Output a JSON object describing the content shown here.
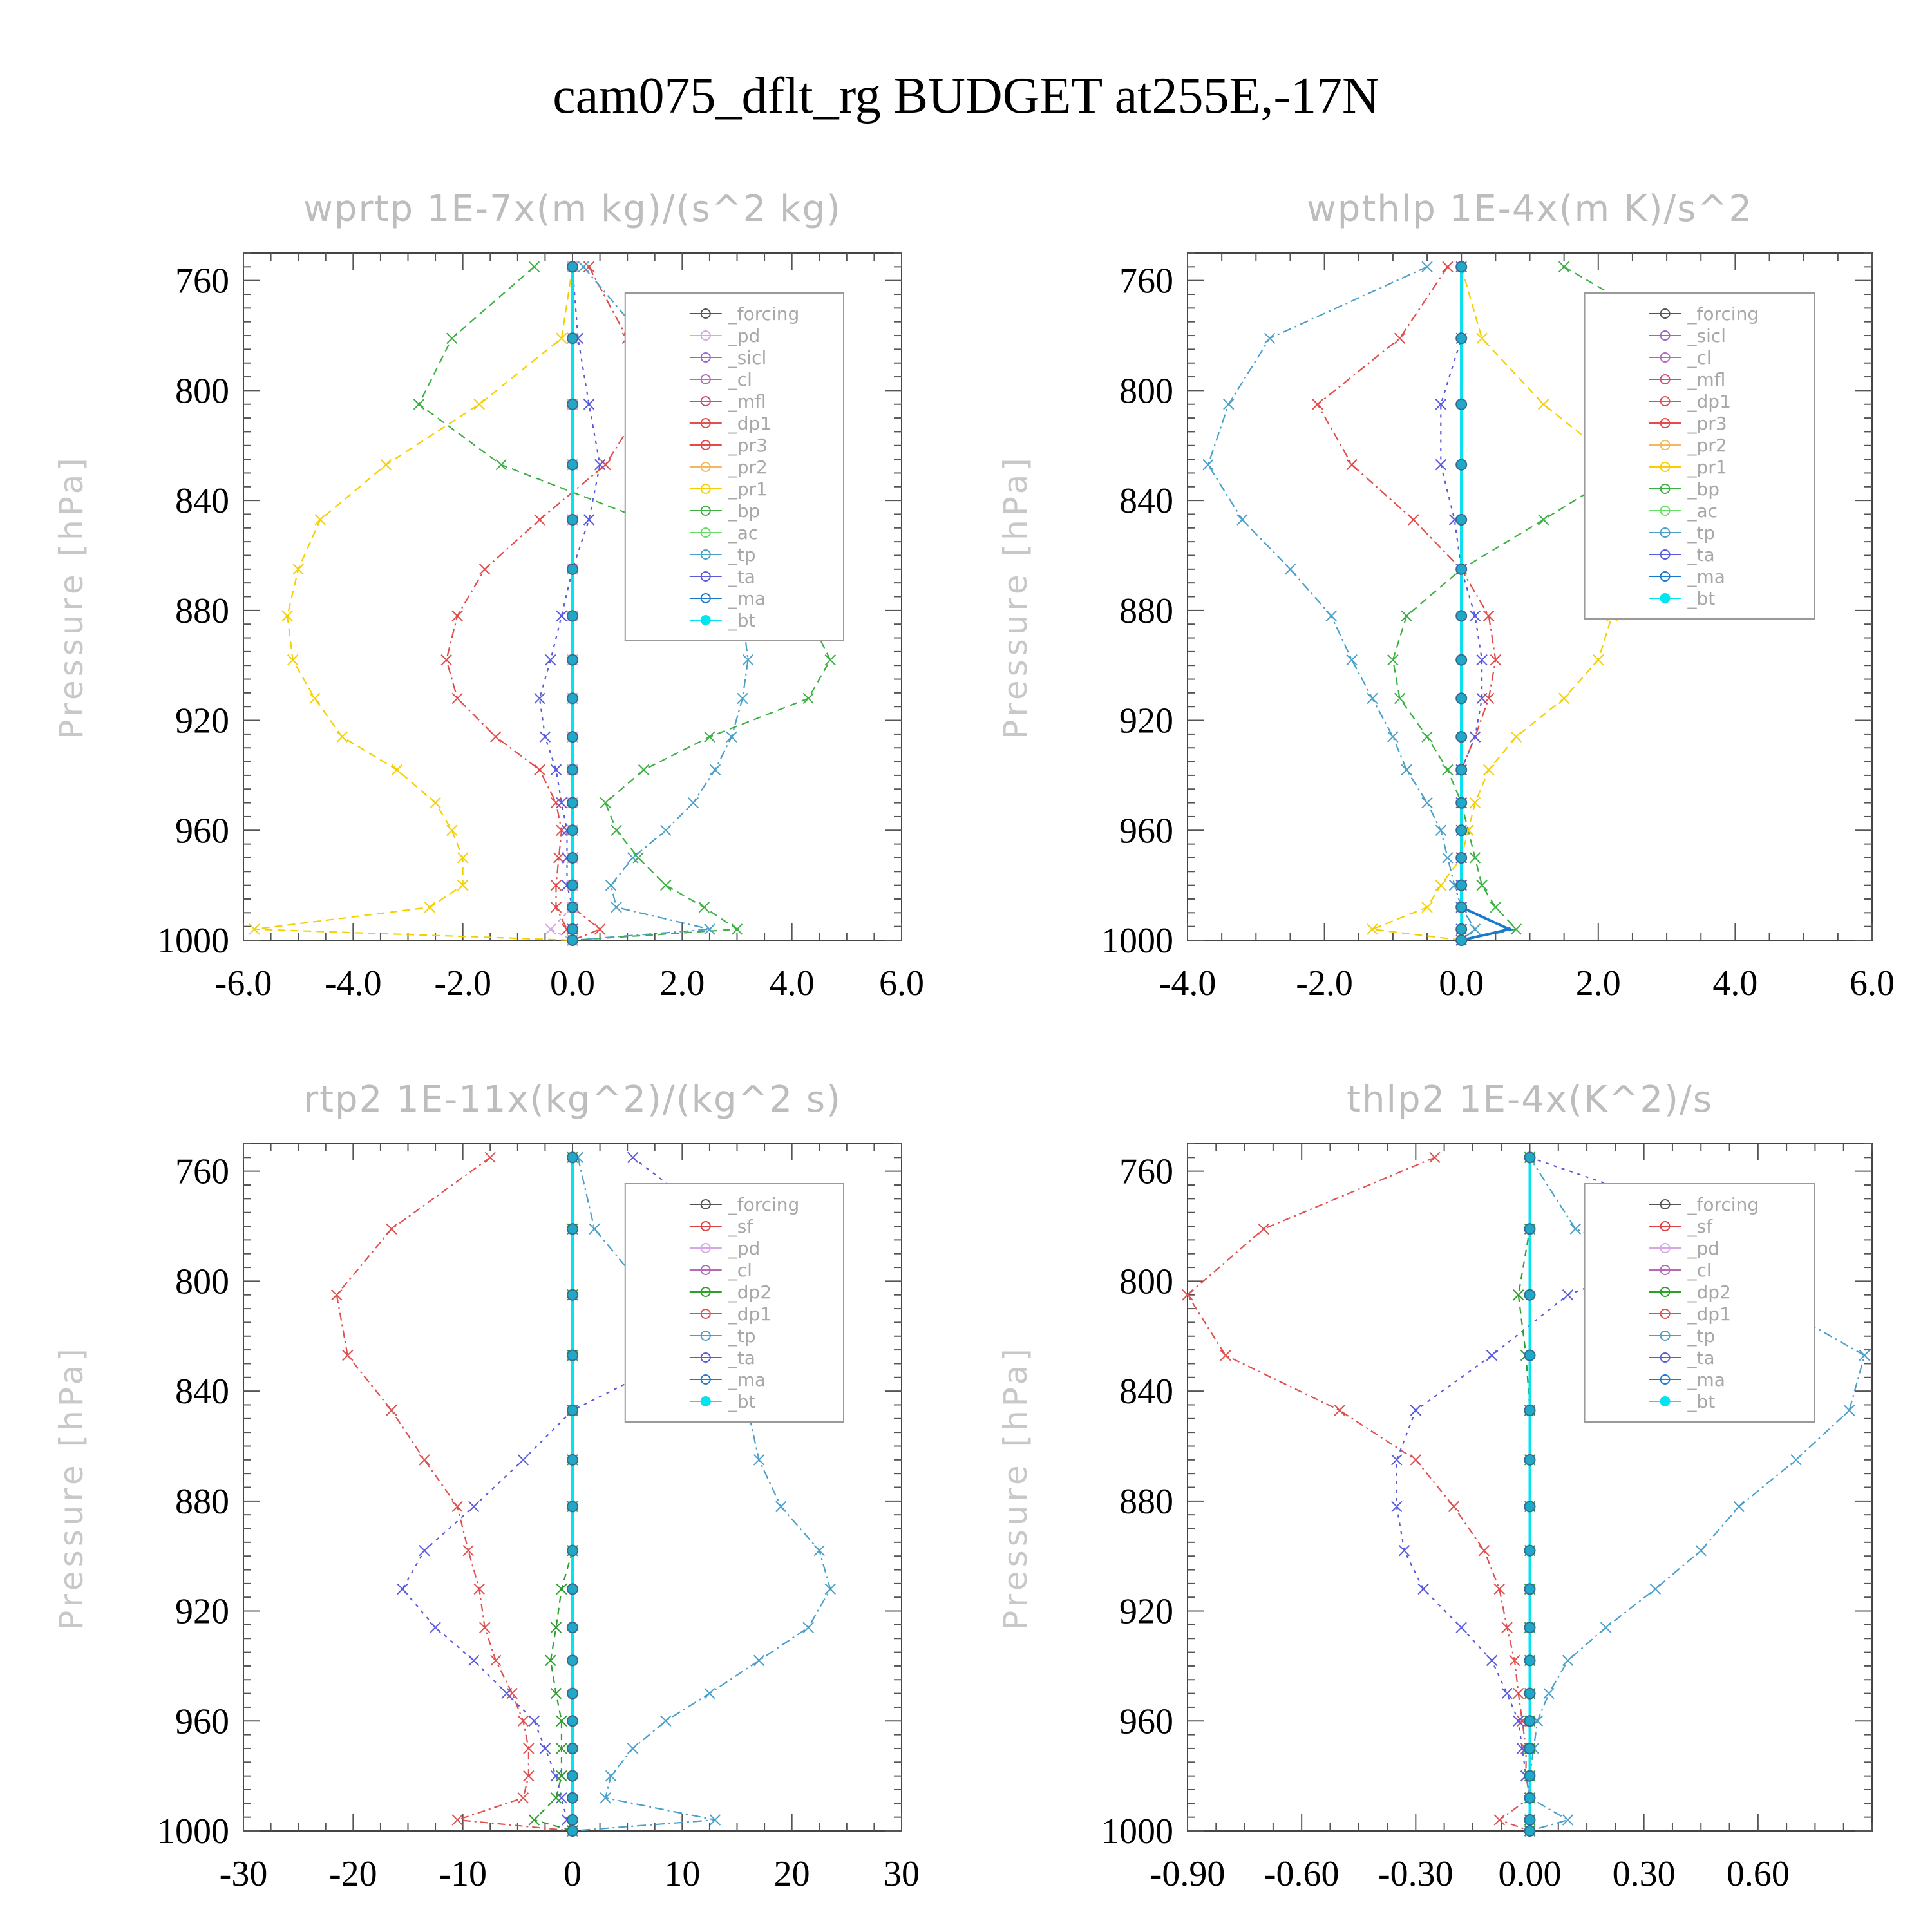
{
  "figure": {
    "title": "cam075_dflt_rg  BUDGET at255E,-17N"
  },
  "colors": {
    "_forcing": "#555555",
    "_pd": "#d8a6e6",
    "_sicl": "#9966cc",
    "_cl": "#b56ab8",
    "_mfl": "#d04a80",
    "_dp1": "#e05050",
    "_pr3": "#e34a4a",
    "_pr2": "#f0b860",
    "_pr1": "#f5d000",
    "_bp": "#3cb043",
    "_ac": "#66dd66",
    "_tp": "#4aa0c8",
    "_ta": "#5a5ae0",
    "_ma": "#1a7ad0",
    "_bt": "#00e5ee",
    "_sf": "#e04040",
    "_dp2": "#2e9e2e"
  },
  "chart_data": [
    {
      "type": "line",
      "title": "wprtp   1E-7x(m kg)/(s^2 kg)",
      "ylabel": "Pressure [hPa]",
      "xlim": [
        -6.0,
        6.0
      ],
      "ylim": [
        1000,
        750
      ],
      "xticks": [
        "-6.0",
        "-4.0",
        "-2.0",
        "0.0",
        "2.0",
        "4.0",
        "6.0"
      ],
      "xtick_values": [
        -6,
        -4,
        -2,
        0,
        2,
        4,
        6
      ],
      "yticks": [
        760,
        800,
        840,
        880,
        920,
        960,
        1000
      ],
      "legend": [
        "_forcing",
        "_pd",
        "_sicl",
        "_cl",
        "_mfl",
        "_dp1",
        "_pr3",
        "_pr2",
        "_pr1",
        "_bp",
        "_ac",
        "_tp",
        "_ta",
        "_ma",
        "_bt"
      ],
      "legend_placement": "upper-right",
      "pressure": [
        755,
        781,
        805,
        827,
        847,
        865,
        882,
        898,
        912,
        926,
        938,
        950,
        960,
        970,
        980,
        988,
        996,
        1000
      ],
      "series": [
        {
          "name": "_pr1",
          "values": [
            0,
            -0.2,
            -1.7,
            -3.4,
            -4.6,
            -5.0,
            -5.2,
            -5.1,
            -4.7,
            -4.2,
            -3.2,
            -2.5,
            -2.2,
            -2.0,
            -2.0,
            -2.6,
            -5.8,
            0
          ]
        },
        {
          "name": "_bp",
          "values": [
            -0.7,
            -2.2,
            -2.8,
            -1.3,
            1.3,
            3.0,
            4.3,
            4.7,
            4.3,
            2.5,
            1.3,
            0.6,
            0.8,
            1.2,
            1.7,
            2.4,
            3.0,
            0
          ]
        },
        {
          "name": "_pr3",
          "values": [
            0.3,
            1.0,
            1.3,
            0.6,
            -0.6,
            -1.6,
            -2.1,
            -2.3,
            -2.1,
            -1.4,
            -0.6,
            -0.3,
            -0.2,
            -0.25,
            -0.3,
            -0.3,
            -0.1,
            0
          ]
        },
        {
          "name": "_tp",
          "values": [
            0.2,
            1.3,
            2.6,
            3.5,
            3.4,
            3.2,
            3.1,
            3.2,
            3.1,
            2.9,
            2.6,
            2.2,
            1.7,
            1.1,
            0.7,
            0.8,
            2.5,
            0
          ]
        },
        {
          "name": "_ta",
          "values": [
            0,
            0.1,
            0.3,
            0.5,
            0.3,
            0,
            -0.2,
            -0.4,
            -0.6,
            -0.5,
            -0.3,
            -0.2,
            -0.1,
            -0.1,
            -0.1,
            0,
            0,
            0
          ]
        },
        {
          "name": "_dp1",
          "values": [
            0,
            0,
            0,
            0,
            0,
            0,
            0,
            0,
            0,
            0,
            0,
            0,
            0,
            0,
            0,
            0,
            0.5,
            0
          ]
        },
        {
          "name": "_pd",
          "values": [
            0,
            0,
            0,
            0,
            0,
            0,
            0,
            0,
            0,
            0,
            0,
            0,
            0,
            0,
            0,
            0,
            -0.4,
            0
          ]
        },
        {
          "name": "_ma",
          "values": [
            0,
            0,
            0,
            0,
            0,
            0,
            0,
            0,
            0,
            0,
            0,
            0,
            0,
            0,
            0,
            0,
            0,
            0
          ]
        },
        {
          "name": "_bt",
          "values": [
            0,
            0,
            0,
            0,
            0,
            0,
            0,
            0,
            0,
            0,
            0,
            0,
            0,
            0,
            0,
            0,
            0,
            0
          ]
        }
      ]
    },
    {
      "type": "line",
      "title": "wpthlp   1E-4x(m K)/s^2",
      "ylabel": "Pressure [hPa]",
      "xlim": [
        -4.0,
        6.0
      ],
      "ylim": [
        1000,
        750
      ],
      "xticks": [
        "-4.0",
        "-2.0",
        "0.0",
        "2.0",
        "4.0",
        "6.0"
      ],
      "xtick_values": [
        -4,
        -2,
        0,
        2,
        4,
        6
      ],
      "yticks": [
        760,
        800,
        840,
        880,
        920,
        960,
        1000
      ],
      "legend": [
        "_forcing",
        "_sicl",
        "_cl",
        "_mfl",
        "_dp1",
        "_pr3",
        "_pr2",
        "_pr1",
        "_bp",
        "_ac",
        "_tp",
        "_ta",
        "_ma",
        "_bt"
      ],
      "legend_placement": "upper-right",
      "pressure": [
        755,
        781,
        805,
        827,
        847,
        865,
        882,
        898,
        912,
        926,
        938,
        950,
        960,
        970,
        980,
        988,
        996,
        1000
      ],
      "series": [
        {
          "name": "_tp",
          "values": [
            -0.5,
            -2.8,
            -3.4,
            -3.7,
            -3.2,
            -2.5,
            -1.9,
            -1.6,
            -1.3,
            -1.0,
            -0.8,
            -0.5,
            -0.3,
            -0.2,
            -0.1,
            0,
            0.2,
            0
          ]
        },
        {
          "name": "_bp",
          "values": [
            1.5,
            3.3,
            4.5,
            2.5,
            1.2,
            0,
            -0.8,
            -1.0,
            -0.9,
            -0.5,
            -0.2,
            0,
            0.1,
            0.2,
            0.3,
            0.5,
            0.8,
            0
          ]
        },
        {
          "name": "_pr1",
          "values": [
            0,
            0.3,
            1.2,
            2.3,
            2.6,
            2.4,
            2.2,
            2.0,
            1.5,
            0.8,
            0.4,
            0.2,
            0.1,
            0,
            -0.3,
            -0.5,
            -1.3,
            0
          ]
        },
        {
          "name": "_pr3",
          "values": [
            -0.2,
            -0.9,
            -2.1,
            -1.6,
            -0.7,
            0,
            0.4,
            0.5,
            0.4,
            0.2,
            0,
            0,
            0,
            0,
            0,
            0,
            0,
            0
          ]
        },
        {
          "name": "_ta",
          "values": [
            0,
            0,
            -0.3,
            -0.3,
            -0.1,
            0,
            0.2,
            0.3,
            0.3,
            0.2,
            0,
            0,
            0,
            0,
            0,
            0,
            0,
            0
          ]
        },
        {
          "name": "_ma",
          "values": [
            0,
            0,
            0,
            0,
            0,
            0,
            0,
            0,
            0,
            0,
            0,
            0,
            0,
            0,
            0,
            0,
            0.7,
            0
          ]
        },
        {
          "name": "_bt",
          "values": [
            0,
            0,
            0,
            0,
            0,
            0,
            0,
            0,
            0,
            0,
            0,
            0,
            0,
            0,
            0,
            0,
            0,
            0
          ]
        }
      ]
    },
    {
      "type": "line",
      "title": "rtp2   1E-11x(kg^2)/(kg^2 s)",
      "ylabel": "Pressure [hPa]",
      "xlim": [
        -30,
        30
      ],
      "ylim": [
        1000,
        750
      ],
      "xticks": [
        "-30",
        "-20",
        "-10",
        "0",
        "10",
        "20",
        "30"
      ],
      "xtick_values": [
        -30,
        -20,
        -10,
        0,
        10,
        20,
        30
      ],
      "yticks": [
        760,
        800,
        840,
        880,
        920,
        960,
        1000
      ],
      "legend": [
        "_forcing",
        "_sf",
        "_pd",
        "_cl",
        "_dp2",
        "_dp1",
        "_tp",
        "_ta",
        "_ma",
        "_bt"
      ],
      "legend_placement": "upper-right",
      "pressure": [
        755,
        781,
        805,
        827,
        847,
        865,
        882,
        898,
        912,
        926,
        938,
        950,
        960,
        970,
        980,
        988,
        996,
        1000
      ],
      "series": [
        {
          "name": "_dp1",
          "values": [
            -7.5,
            -16.5,
            -21.5,
            -20.5,
            -16.5,
            -13.5,
            -10.5,
            -9.5,
            -8.5,
            -8.0,
            -7.0,
            -5.5,
            -4.5,
            -4.0,
            -4.0,
            -4.5,
            -10.5,
            0
          ]
        },
        {
          "name": "_ta",
          "values": [
            5.5,
            14.0,
            14.5,
            10.0,
            0,
            -4.5,
            -9.0,
            -13.5,
            -15.5,
            -12.5,
            -9.0,
            -6.0,
            -3.5,
            -2.5,
            -1.5,
            -1.0,
            -0.5,
            0
          ]
        },
        {
          "name": "_tp",
          "values": [
            0.5,
            2.0,
            7.0,
            12.0,
            16.0,
            17.0,
            19.0,
            22.5,
            23.5,
            21.5,
            17.0,
            12.5,
            8.5,
            5.5,
            3.5,
            3.0,
            13.0,
            0
          ]
        },
        {
          "name": "_dp2",
          "values": [
            0,
            0,
            0,
            0,
            0,
            0,
            0,
            0,
            -1.0,
            -1.5,
            -2.0,
            -1.5,
            -1.0,
            -1.0,
            -1.0,
            -1.5,
            -3.5,
            0
          ]
        },
        {
          "name": "_ma",
          "values": [
            0,
            0,
            0,
            0,
            0,
            0,
            0,
            0,
            0,
            0,
            0,
            0,
            0,
            0,
            0,
            0,
            0,
            0
          ]
        },
        {
          "name": "_bt",
          "values": [
            0,
            0,
            0,
            0,
            0,
            0,
            0,
            0,
            0,
            0,
            0,
            0,
            0,
            0,
            0,
            0,
            0,
            0
          ]
        }
      ]
    },
    {
      "type": "line",
      "title": "thlp2   1E-4x(K^2)/s",
      "ylabel": "Pressure [hPa]",
      "xlim": [
        -0.9,
        0.9
      ],
      "ylim": [
        1000,
        750
      ],
      "xticks": [
        "-0.90",
        "-0.60",
        "-0.30",
        "0.00",
        "0.30",
        "0.60"
      ],
      "xtick_values": [
        -0.9,
        -0.6,
        -0.3,
        0,
        0.3,
        0.6
      ],
      "yticks": [
        760,
        800,
        840,
        880,
        920,
        960,
        1000
      ],
      "legend": [
        "_forcing",
        "_sf",
        "_pd",
        "_cl",
        "_dp2",
        "_dp1",
        "_tp",
        "_ta",
        "_ma",
        "_bt"
      ],
      "legend_placement": "upper-right",
      "pressure": [
        755,
        781,
        805,
        827,
        847,
        865,
        882,
        898,
        912,
        926,
        938,
        950,
        960,
        970,
        980,
        988,
        996,
        1000
      ],
      "series": [
        {
          "name": "_dp1",
          "values": [
            -0.25,
            -0.7,
            -0.9,
            -0.8,
            -0.5,
            -0.3,
            -0.2,
            -0.12,
            -0.08,
            -0.06,
            -0.04,
            -0.03,
            -0.02,
            -0.01,
            -0.01,
            0,
            -0.08,
            0
          ]
        },
        {
          "name": "_ta",
          "values": [
            0,
            0.55,
            0.1,
            -0.1,
            -0.3,
            -0.35,
            -0.35,
            -0.33,
            -0.28,
            -0.18,
            -0.1,
            -0.06,
            -0.03,
            -0.02,
            -0.01,
            0,
            0,
            0
          ]
        },
        {
          "name": "_tp",
          "values": [
            0,
            0.12,
            0.6,
            0.88,
            0.84,
            0.7,
            0.55,
            0.45,
            0.33,
            0.2,
            0.1,
            0.05,
            0.02,
            0.01,
            0,
            0,
            0.1,
            0
          ]
        },
        {
          "name": "_dp2",
          "values": [
            0,
            0,
            -0.03,
            -0.01,
            0,
            0,
            0,
            0,
            0,
            0,
            0,
            0,
            0,
            0,
            0,
            0,
            0,
            0
          ]
        },
        {
          "name": "_ma",
          "values": [
            0,
            0,
            0,
            0,
            0,
            0,
            0,
            0,
            0,
            0,
            0,
            0,
            0,
            0,
            0,
            0,
            0,
            0
          ]
        },
        {
          "name": "_bt",
          "values": [
            0,
            0,
            0,
            0,
            0,
            0,
            0,
            0,
            0,
            0,
            0,
            0,
            0,
            0,
            0,
            0,
            0,
            0
          ]
        }
      ]
    }
  ]
}
